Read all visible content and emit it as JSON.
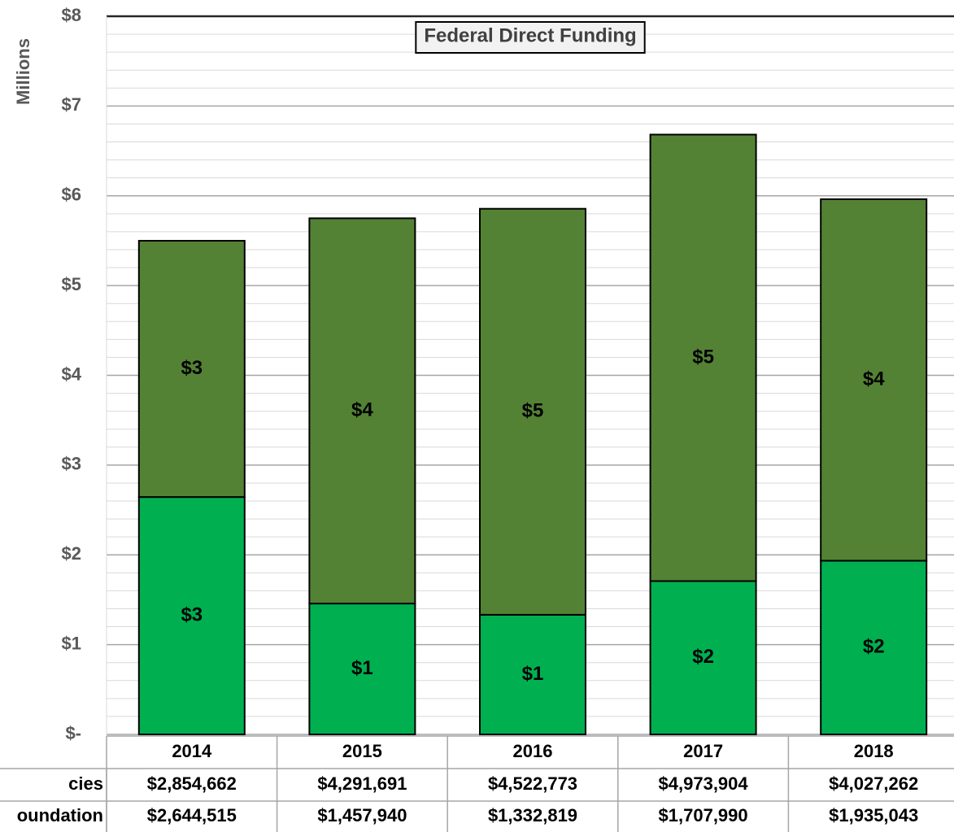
{
  "chart_data": {
    "type": "stacked_bar",
    "title": "Federal Direct Funding",
    "ylabel": "Millions",
    "categories": [
      "2014",
      "2015",
      "2016",
      "2017",
      "2018"
    ],
    "series": [
      {
        "name": "oundation",
        "color": "#00b050",
        "values": [
          2.644515,
          1.45794,
          1.332819,
          1.70799,
          1.935043
        ],
        "value_labels": [
          "$3",
          "$1",
          "$1",
          "$2",
          "$2"
        ],
        "table_labels": [
          "$2,644,515",
          "$1,457,940",
          "$1,332,819",
          "$1,707,990",
          "$1,935,043"
        ]
      },
      {
        "name": "cies",
        "color": "#548235",
        "values": [
          2.854662,
          4.291691,
          4.522773,
          4.973904,
          4.027262
        ],
        "value_labels": [
          "$3",
          "$4",
          "$5",
          "$5",
          "$4"
        ],
        "table_labels": [
          "$2,854,662",
          "$4,291,691",
          "$4,522,773",
          "$4,973,904",
          "$4,027,262"
        ]
      }
    ],
    "ylim": [
      0,
      8
    ],
    "yticks": [
      {
        "value": 0,
        "label": "$-"
      },
      {
        "value": 1,
        "label": "$1"
      },
      {
        "value": 2,
        "label": "$2"
      },
      {
        "value": 3,
        "label": "$3"
      },
      {
        "value": 4,
        "label": "$4"
      },
      {
        "value": 5,
        "label": "$5"
      },
      {
        "value": 6,
        "label": "$6"
      },
      {
        "value": 7,
        "label": "$7"
      },
      {
        "value": 8,
        "label": "$8"
      }
    ],
    "grid": true,
    "minor_grid_divisions": 5
  }
}
